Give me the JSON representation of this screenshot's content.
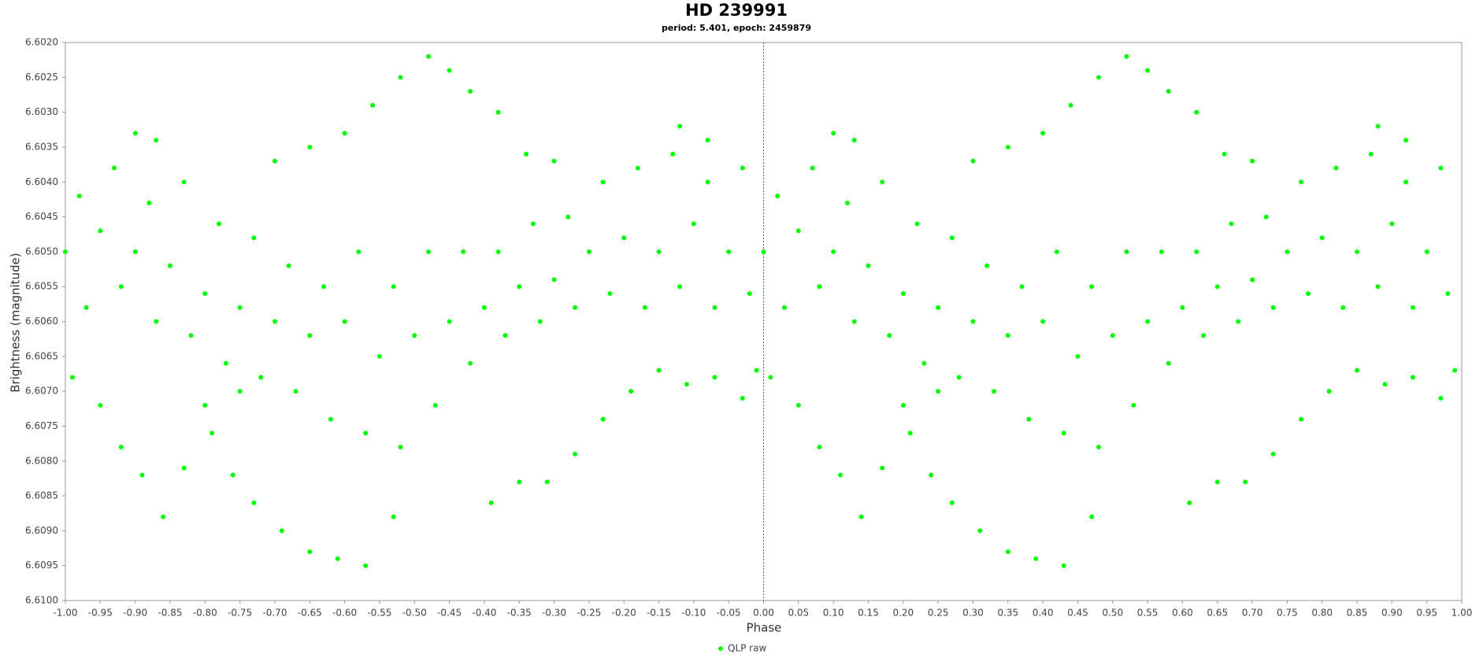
{
  "chart_data": {
    "type": "scatter",
    "title": "HD 239991",
    "subtitle": "period: 5.401, epoch: 2459879",
    "x_label": "Phase",
    "y_label": "Brightness (magnitude)",
    "xlim": [
      -1,
      1
    ],
    "ylim": [
      6.602,
      6.61
    ],
    "y_inverted": true,
    "grid": false,
    "zero_line": true,
    "legend": "bottom",
    "xticks": [
      {
        "value": -1,
        "label": "-1.00"
      },
      -0.95,
      {
        "value": -0.9,
        "label": "-0.90"
      },
      -0.85,
      {
        "value": -0.8,
        "label": "-0.80"
      },
      -0.75,
      {
        "value": -0.7,
        "label": "-0.70"
      },
      -0.65,
      {
        "value": -0.6,
        "label": "-0.60"
      },
      -0.55,
      {
        "value": -0.5,
        "label": "-0.50"
      },
      -0.45,
      {
        "value": -0.4,
        "label": "-0.40"
      },
      -0.35,
      {
        "value": -0.3,
        "label": "-0.30"
      },
      -0.25,
      {
        "value": -0.2,
        "label": "-0.20"
      },
      -0.15,
      {
        "value": -0.1,
        "label": "-0.10"
      },
      -0.05,
      {
        "value": 0,
        "label": "0.00"
      },
      0.05,
      {
        "value": 0.1,
        "label": "0.10"
      },
      0.15,
      {
        "value": 0.2,
        "label": "0.20"
      },
      0.25,
      {
        "value": 0.3,
        "label": "0.30"
      },
      0.35,
      {
        "value": 0.4,
        "label": "0.40"
      },
      0.45,
      {
        "value": 0.5,
        "label": "0.50"
      },
      0.55,
      {
        "value": 0.6,
        "label": "0.60"
      },
      0.65,
      {
        "value": 0.7,
        "label": "0.70"
      },
      0.75,
      {
        "value": 0.8,
        "label": "0.80"
      },
      0.85,
      {
        "value": 0.9,
        "label": "0.90"
      },
      0.95,
      {
        "value": 1,
        "label": "1.00"
      }
    ],
    "yticks": [
      {
        "value": 6.602,
        "label": "6.6020"
      },
      6.6025,
      {
        "value": 6.603,
        "label": "6.6030"
      },
      6.6035,
      {
        "value": 6.604,
        "label": "6.6040"
      },
      6.6045,
      {
        "value": 6.605,
        "label": "6.6050"
      },
      6.6055,
      {
        "value": 6.606,
        "label": "6.6060"
      },
      6.6065,
      {
        "value": 6.607,
        "label": "6.6070"
      },
      6.6075,
      {
        "value": 6.608,
        "label": "6.6080"
      },
      6.6085,
      {
        "value": 6.609,
        "label": "6.6090"
      },
      6.6095,
      {
        "value": 6.61,
        "label": "6.6100"
      }
    ],
    "x": [
      -1,
      -0.98,
      -0.97,
      -0.95,
      -0.93,
      -0.92,
      -0.9,
      -0.88,
      -0.87,
      -0.85,
      -0.83,
      -0.82,
      -0.8,
      -0.78,
      -0.77,
      -0.75,
      -0.73,
      -0.72,
      -0.7,
      -0.68,
      -0.67,
      -0.65,
      -0.63,
      -0.62,
      -0.6,
      -0.58,
      -0.57,
      -0.55,
      -0.53,
      -0.52,
      -0.5,
      -0.48,
      -0.47,
      -0.45,
      -0.43,
      -0.42,
      -0.4,
      -0.38,
      -0.37,
      -0.35,
      -0.33,
      -0.32,
      -0.3,
      -0.28,
      -0.27,
      -0.25,
      -0.23,
      -0.22,
      -0.2,
      -0.18,
      -0.17,
      -0.15,
      -0.13,
      -0.12,
      -0.1,
      -0.08,
      -0.07,
      -0.05,
      -0.03,
      -0.02,
      -0.7,
      -0.65,
      -0.6,
      -0.56,
      -0.52,
      -0.48,
      -0.45,
      -0.42,
      -0.38,
      -0.34,
      -0.3,
      -0.99,
      -0.95,
      -0.92,
      -0.89,
      -0.86,
      -0.83,
      -0.79,
      -0.76,
      -0.73,
      -0.69,
      -0.65,
      -0.61,
      -0.57,
      -0.53,
      -0.39,
      -0.35,
      -0.31,
      -0.27,
      -0.23,
      -0.19,
      -0.15,
      -0.11,
      -0.07,
      -0.03,
      -0.01,
      -0.9,
      -0.87,
      -0.12,
      -0.08,
      -0.8,
      -0.75,
      0,
      0.02,
      0.03,
      0.05,
      0.07,
      0.08,
      0.1,
      0.12,
      0.13,
      0.15,
      0.17,
      0.18,
      0.2,
      0.22,
      0.23,
      0.25,
      0.27,
      0.28,
      0.3,
      0.32,
      0.33,
      0.35,
      0.37,
      0.38,
      0.4,
      0.42,
      0.43,
      0.45,
      0.47,
      0.48,
      0.5,
      0.52,
      0.53,
      0.55,
      0.57,
      0.58,
      0.6,
      0.62,
      0.63,
      0.65,
      0.67,
      0.68,
      0.7,
      0.72,
      0.73,
      0.75,
      0.77,
      0.78,
      0.8,
      0.82,
      0.83,
      0.85,
      0.87,
      0.88,
      0.9,
      0.92,
      0.93,
      0.95,
      0.97,
      0.98,
      0.3,
      0.35,
      0.4,
      0.44,
      0.48,
      0.52,
      0.55,
      0.58,
      0.62,
      0.66,
      0.7,
      0.01,
      0.05,
      0.08,
      0.11,
      0.14,
      0.17,
      0.21,
      0.24,
      0.27,
      0.31,
      0.35,
      0.39,
      0.43,
      0.47,
      0.61,
      0.65,
      0.69,
      0.73,
      0.77,
      0.81,
      0.85,
      0.89,
      0.93,
      0.97,
      0.99,
      0.1,
      0.13,
      0.88,
      0.92,
      0.2,
      0.25
    ],
    "series": [
      {
        "name": "QLP raw",
        "color": "#00ff00",
        "values": [
          6.605,
          6.6042,
          6.6058,
          6.6047,
          6.6038,
          6.6055,
          6.605,
          6.6043,
          6.606,
          6.6052,
          6.604,
          6.6062,
          6.6056,
          6.6046,
          6.6066,
          6.6058,
          6.6048,
          6.6068,
          6.606,
          6.6052,
          6.607,
          6.6062,
          6.6055,
          6.6074,
          6.606,
          6.605,
          6.6076,
          6.6065,
          6.6055,
          6.6078,
          6.6062,
          6.605,
          6.6072,
          6.606,
          6.605,
          6.6066,
          6.6058,
          6.605,
          6.6062,
          6.6055,
          6.6046,
          6.606,
          6.6054,
          6.6045,
          6.6058,
          6.605,
          6.604,
          6.6056,
          6.6048,
          6.6038,
          6.6058,
          6.605,
          6.6036,
          6.6055,
          6.6046,
          6.604,
          6.6058,
          6.605,
          6.6038,
          6.6056,
          6.6037,
          6.6035,
          6.6033,
          6.6029,
          6.6025,
          6.6022,
          6.6024,
          6.6027,
          6.603,
          6.6036,
          6.6037,
          6.6068,
          6.6072,
          6.6078,
          6.6082,
          6.6088,
          6.6081,
          6.6076,
          6.6082,
          6.6086,
          6.609,
          6.6093,
          6.6094,
          6.6095,
          6.6088,
          6.6086,
          6.6083,
          6.6083,
          6.6079,
          6.6074,
          6.607,
          6.6067,
          6.6069,
          6.6068,
          6.6071,
          6.6067,
          6.6033,
          6.6034,
          6.6032,
          6.6034,
          6.6072,
          6.607,
          6.605,
          6.6042,
          6.6058,
          6.6047,
          6.6038,
          6.6055,
          6.605,
          6.6043,
          6.606,
          6.6052,
          6.604,
          6.6062,
          6.6056,
          6.6046,
          6.6066,
          6.6058,
          6.6048,
          6.6068,
          6.606,
          6.6052,
          6.607,
          6.6062,
          6.6055,
          6.6074,
          6.606,
          6.605,
          6.6076,
          6.6065,
          6.6055,
          6.6078,
          6.6062,
          6.605,
          6.6072,
          6.606,
          6.605,
          6.6066,
          6.6058,
          6.605,
          6.6062,
          6.6055,
          6.6046,
          6.606,
          6.6054,
          6.6045,
          6.6058,
          6.605,
          6.604,
          6.6056,
          6.6048,
          6.6038,
          6.6058,
          6.605,
          6.6036,
          6.6055,
          6.6046,
          6.604,
          6.6058,
          6.605,
          6.6038,
          6.6056,
          6.6037,
          6.6035,
          6.6033,
          6.6029,
          6.6025,
          6.6022,
          6.6024,
          6.6027,
          6.603,
          6.6036,
          6.6037,
          6.6068,
          6.6072,
          6.6078,
          6.6082,
          6.6088,
          6.6081,
          6.6076,
          6.6082,
          6.6086,
          6.609,
          6.6093,
          6.6094,
          6.6095,
          6.6088,
          6.6086,
          6.6083,
          6.6083,
          6.6079,
          6.6074,
          6.607,
          6.6067,
          6.6069,
          6.6068,
          6.6071,
          6.6067,
          6.6033,
          6.6034,
          6.6032,
          6.6034,
          6.6072,
          6.607
        ]
      }
    ]
  }
}
